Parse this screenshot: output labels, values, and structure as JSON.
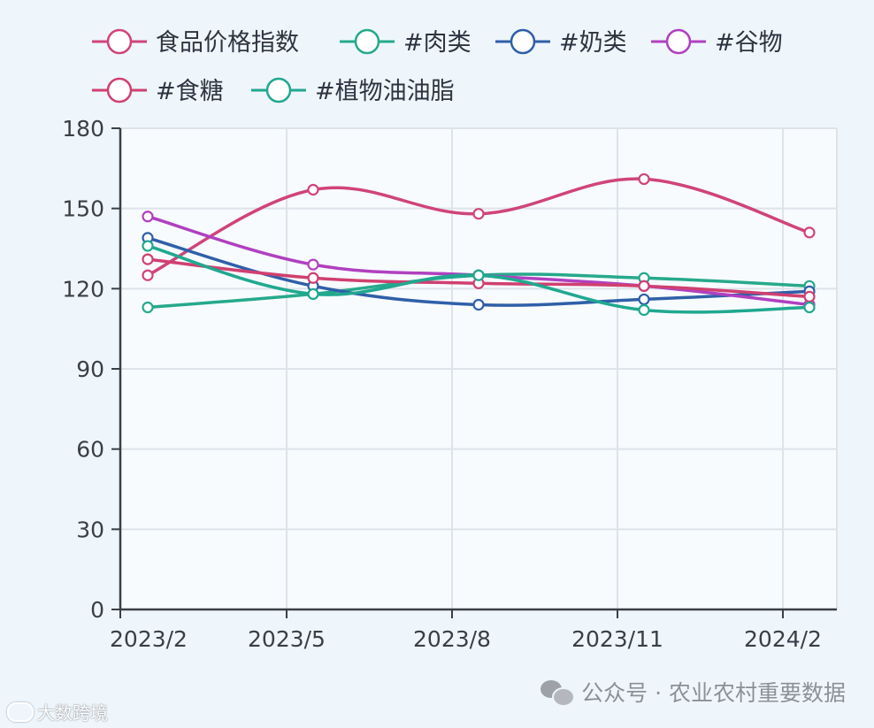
{
  "chart_data": {
    "type": "line",
    "title": "",
    "xlabel": "",
    "ylabel": "",
    "ylim": [
      0,
      180
    ],
    "yticks": [
      0,
      30,
      60,
      90,
      120,
      150,
      180
    ],
    "x_tick_labels": [
      "2023/2",
      "2023/5",
      "2023/8",
      "2023/11",
      "2024/2"
    ],
    "x": [
      "2023/2",
      "2023/5",
      "2023/8",
      "2023/11",
      "2024/2"
    ],
    "grid": true,
    "legend_position": "top",
    "series": [
      {
        "name": "食品价格指数",
        "color": "#d0447a",
        "values": [
          125,
          157,
          148,
          161,
          141
        ]
      },
      {
        "name": "#肉类",
        "color": "#26a98b",
        "values": [
          113,
          118,
          125,
          124,
          121
        ]
      },
      {
        "name": "#奶类",
        "color": "#2f5fa8",
        "values": [
          139,
          121,
          114,
          116,
          119
        ]
      },
      {
        "name": "#谷物",
        "color": "#b040c0",
        "values": [
          147,
          129,
          125,
          121,
          114
        ]
      },
      {
        "name": "#食糖",
        "color": "#d04070",
        "values": [
          131,
          124,
          122,
          121,
          117
        ]
      },
      {
        "name": "#植物油油脂",
        "color": "#20a890",
        "values": [
          136,
          118,
          125,
          112,
          113
        ]
      }
    ]
  },
  "watermark": {
    "text": "公众号 · 农业农村重要数据",
    "icon": "wechat-icon"
  },
  "corner_mark": {
    "text": "大数跨境"
  }
}
